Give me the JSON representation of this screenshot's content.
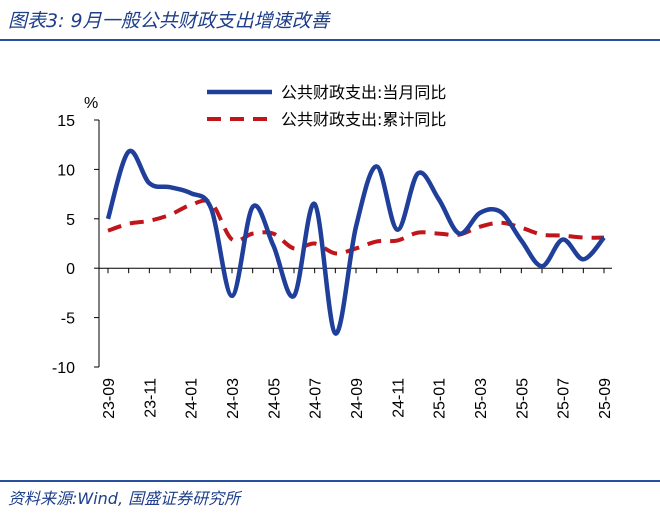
{
  "figure": {
    "title": "图表3:  9月一般公共财政支出增速改善",
    "source": "资料来源:Wind, 国盛证券研究所"
  },
  "chart_data": {
    "type": "line",
    "y_unit": "%",
    "ylim": [
      -10,
      15
    ],
    "y_ticks": [
      15,
      10,
      5,
      0,
      -5,
      -10
    ],
    "x": [
      "23-09",
      "23-10",
      "23-11",
      "23-12",
      "24-01",
      "24-02",
      "24-03",
      "24-04",
      "24-05",
      "24-06",
      "24-07",
      "24-08",
      "24-09",
      "24-10",
      "24-11",
      "24-12",
      "25-01",
      "25-02",
      "25-03",
      "25-04",
      "25-05",
      "25-06",
      "25-07",
      "25-08",
      "25-09"
    ],
    "x_tick_labels": [
      "23-09",
      "23-11",
      "24-01",
      "24-03",
      "24-05",
      "24-07",
      "24-09",
      "24-11",
      "25-01",
      "25-03",
      "25-05",
      "25-07",
      "25-09"
    ],
    "legend_position": "top-right",
    "grid": false,
    "series": [
      {
        "name": "公共财政支出:当月同比",
        "color": "#1f3f9a",
        "style": "solid",
        "values": [
          5.0,
          11.8,
          8.6,
          8.2,
          7.6,
          6.0,
          -2.8,
          6.2,
          2.3,
          -2.8,
          6.5,
          -6.6,
          4.2,
          10.3,
          3.9,
          9.6,
          7.0,
          3.5,
          5.6,
          5.7,
          2.8,
          0.2,
          2.9,
          0.9,
          3.1
        ]
      },
      {
        "name": "公共财政支出:累计同比",
        "color": "#c0151b",
        "style": "dashed",
        "values": [
          3.8,
          4.5,
          4.8,
          5.4,
          6.4,
          6.6,
          2.9,
          3.5,
          3.5,
          2.0,
          2.5,
          1.5,
          2.0,
          2.7,
          2.8,
          3.6,
          3.5,
          3.4,
          4.2,
          4.6,
          4.1,
          3.4,
          3.3,
          3.1,
          3.1
        ]
      }
    ]
  }
}
